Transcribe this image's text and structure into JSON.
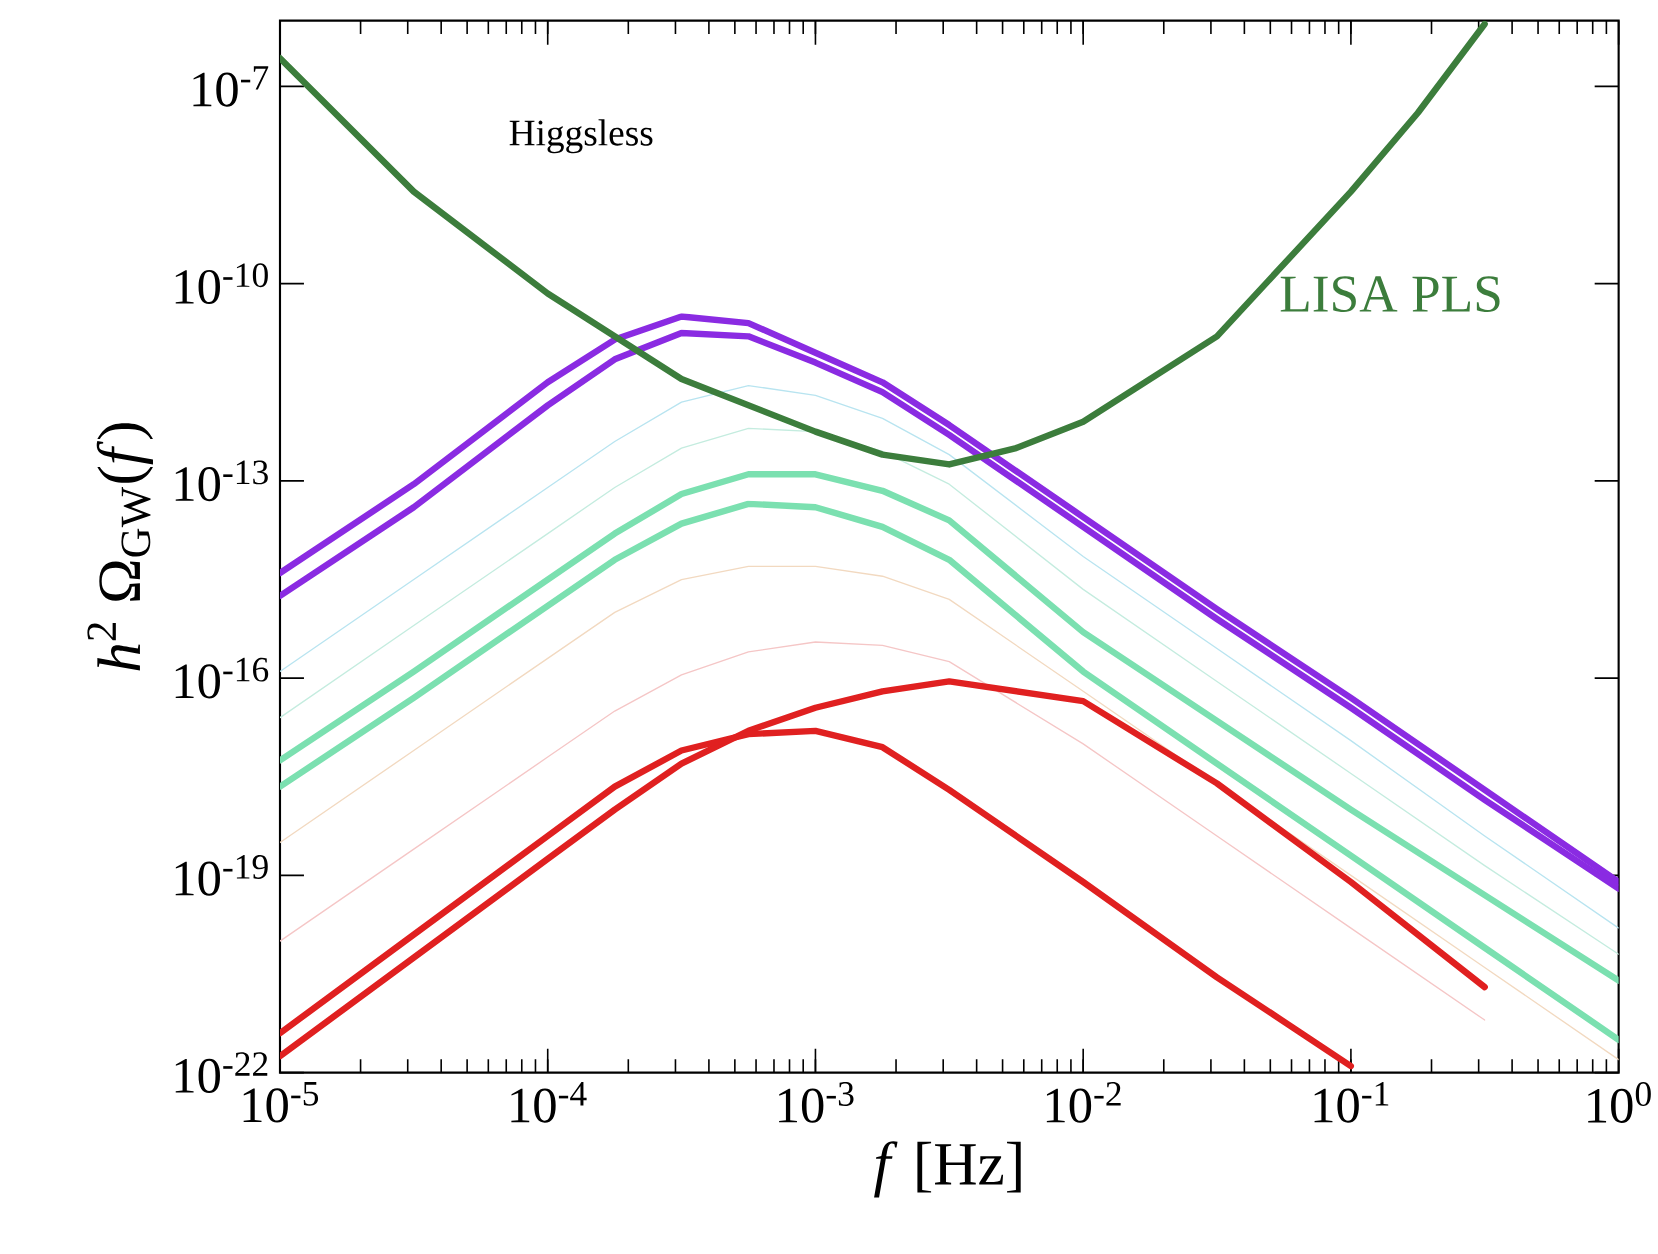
{
  "chart_data": {
    "type": "line",
    "xlabel": "*f* [Hz]",
    "ylabel": "*h*$^{2}$ Ω$_{GW}$(*f*)",
    "log": "xy",
    "grid": false,
    "marker": "none",
    "line_style": "solid",
    "xlim": [
      1e-05,
      1
    ],
    "ylim": [
      1e-22,
      1e-06
    ],
    "xticks": [
      {
        "value": 1e-05,
        "label": "10$^{-5}$"
      },
      {
        "value": 0.0001,
        "label": "10$^{-4}$"
      },
      {
        "value": 0.001,
        "label": "10$^{-3}$"
      },
      {
        "value": 0.01,
        "label": "10$^{-2}$"
      },
      {
        "value": 0.1,
        "label": "10$^{-1}$"
      },
      {
        "value": 1,
        "label": "10$^{0}$"
      }
    ],
    "yticks": [
      {
        "value": 1e-22,
        "label": "10$^{-22}$"
      },
      {
        "value": 1e-19,
        "label": "10$^{-19}$"
      },
      {
        "value": 1e-16,
        "label": "10$^{-16}$"
      },
      {
        "value": 1e-13,
        "label": "10$^{-13}$"
      },
      {
        "value": 1e-10,
        "label": "10$^{-10}$"
      },
      {
        "value": 1e-07,
        "label": "10$^{-7}$"
      }
    ],
    "annotations": [
      "Higgsless"
    ],
    "x": [
      1e-05,
      3.16e-05,
      0.0001,
      0.000178,
      0.000316,
      0.000562,
      0.001,
      0.00178,
      0.00316,
      0.01,
      0.0316,
      0.1,
      0.316,
      1
    ],
    "series": [
      {
        "color": "#b8e4f0",
        "values": [
          1.26e-16,
          3.16e-15,
          7.94e-14,
          3.98e-13,
          1.58e-12,
          2.82e-12,
          2e-12,
          8.91e-13,
          2.51e-13,
          7.08e-15,
          2.82e-16,
          1.12e-17,
          3.98e-19,
          1.58e-20
        ]
      },
      {
        "color": "#c4ecdf",
        "values": [
          2.51e-17,
          6.31e-16,
          1.58e-14,
          7.94e-14,
          3.16e-13,
          6.31e-13,
          5.62e-13,
          2.82e-13,
          8.91e-14,
          2.24e-15,
          8.91e-17,
          3.55e-18,
          1.41e-19,
          6.31e-21
        ]
      },
      {
        "color": "#f2d9c0",
        "values": [
          3.16e-19,
          7.94e-18,
          2e-16,
          1e-15,
          3.16e-15,
          5.01e-15,
          5.01e-15,
          3.55e-15,
          1.58e-15,
          6.31e-17,
          2.51e-18,
          1e-19,
          3.98e-21,
          1.58e-22
        ]
      },
      {
        "color": "#f5c6c6",
        "values": [
          1e-20,
          2.51e-19,
          6.31e-18,
          3.16e-17,
          1.12e-16,
          2.51e-16,
          3.55e-16,
          3.16e-16,
          1.78e-16,
          1e-17,
          3.98e-19,
          1.58e-20,
          6.31e-22,
          null
        ]
      },
      {
        "color": "#8a2be2",
        "values": [
          3.98e-15,
          8.91e-14,
          3.16e-12,
          1.41e-11,
          3.16e-11,
          2.51e-11,
          8.91e-12,
          3.16e-12,
          7.08e-13,
          2.82e-14,
          1.12e-15,
          5.01e-17,
          2e-18,
          7.94e-20
        ]
      },
      {
        "color": "#8a2be2",
        "values": [
          1.78e-15,
          3.98e-14,
          1.41e-12,
          7.08e-12,
          1.78e-11,
          1.58e-11,
          6.31e-12,
          2.24e-12,
          5.01e-13,
          2e-14,
          7.94e-16,
          3.55e-17,
          1.41e-18,
          6.31e-20
        ]
      },
      {
        "color": "#7be0b0",
        "values": [
          5.62e-18,
          1.26e-16,
          3.16e-15,
          1.58e-14,
          6.31e-14,
          1.26e-13,
          1.26e-13,
          7.08e-14,
          2.51e-14,
          5.01e-16,
          2.24e-17,
          1e-18,
          5.01e-20,
          2.51e-21
        ]
      },
      {
        "color": "#7be0b0",
        "values": [
          2.24e-18,
          5.01e-17,
          1.26e-15,
          6.31e-15,
          2.24e-14,
          4.47e-14,
          3.98e-14,
          2e-14,
          6.31e-15,
          1.26e-16,
          5.01e-18,
          2e-19,
          7.94e-21,
          3.16e-22
        ]
      },
      {
        "color": "#e02020",
        "values": [
          1.78e-22,
          5.62e-21,
          1.78e-19,
          1e-18,
          5.01e-18,
          1.58e-17,
          3.55e-17,
          6.31e-17,
          8.91e-17,
          4.47e-17,
          2.51e-18,
          7.94e-20,
          2e-21,
          null
        ]
      },
      {
        "color": "#e02020",
        "values": [
          3.98e-22,
          1.26e-20,
          3.98e-19,
          2.24e-18,
          7.94e-18,
          1.41e-17,
          1.58e-17,
          8.91e-18,
          2e-18,
          7.94e-20,
          2.82e-21,
          1.26e-22,
          null,
          null
        ]
      },
      {
        "name": "LISA PLS",
        "color": "#3c7d3c",
        "x": [
          1e-05,
          3.16e-05,
          0.0001,
          0.000316,
          0.001,
          0.00178,
          0.00316,
          0.00562,
          0.01,
          0.0316,
          0.1,
          0.178,
          0.316
        ],
        "values": [
          2.69e-07,
          2.51e-09,
          7.08e-11,
          3.55e-12,
          5.62e-13,
          2.51e-13,
          1.78e-13,
          3.16e-13,
          7.94e-13,
          1.58e-11,
          2.51e-09,
          3.98e-08,
          8.91e-07
        ]
      }
    ]
  }
}
